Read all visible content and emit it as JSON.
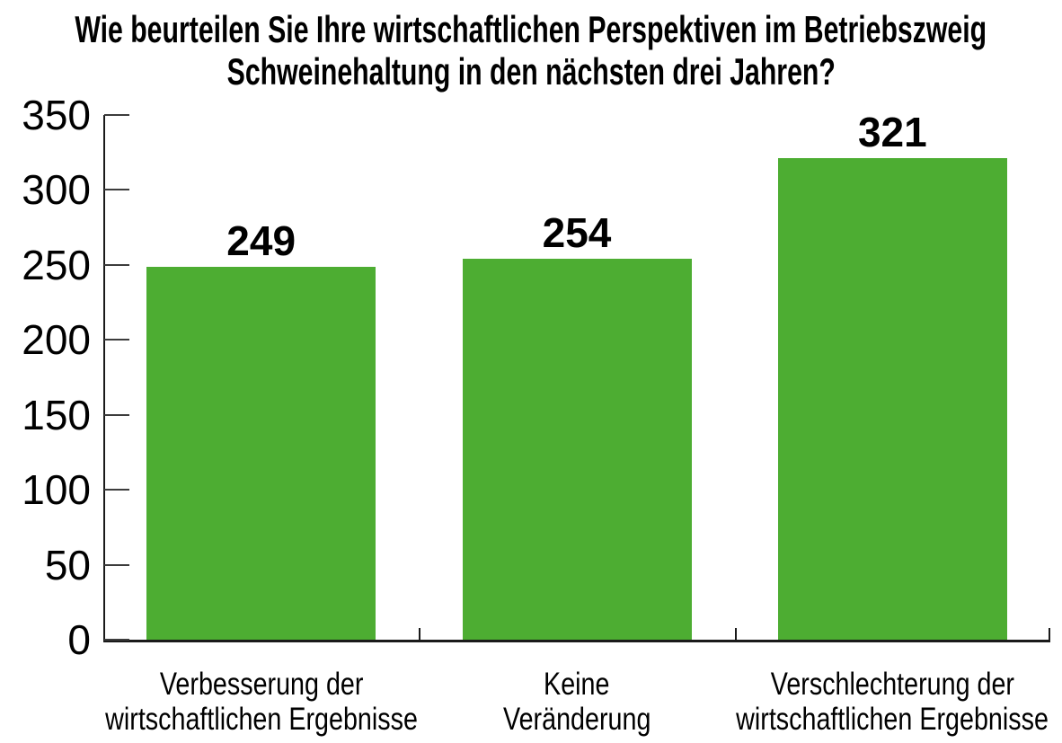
{
  "chart_data": {
    "type": "bar",
    "title": "Wie beurteilen Sie Ihre wirtschaftlichen Perspektiven im Betriebszweig Schweinehaltung in den nächsten drei Jahren?",
    "title_lines": [
      "Wie beurteilen Sie Ihre wirtschaftlichen Perspektiven im Betriebszweig",
      "Schweinehaltung in den nächsten drei Jahren?"
    ],
    "categories": [
      "Verbesserung der wirtschaftlichen Ergebnisse",
      "Keine Veränderung",
      "Verschlechterung der wirtschaftlichen Ergebnisse"
    ],
    "category_lines": [
      [
        "Verbesserung der",
        "wirtschaftlichen Ergebnisse"
      ],
      [
        "Keine",
        "Veränderung"
      ],
      [
        "Verschlechterung der",
        "wirtschaftlichen Ergebnisse"
      ]
    ],
    "values": [
      249,
      254,
      321
    ],
    "value_labels": [
      "249",
      "254",
      "321"
    ],
    "y_ticks": [
      0,
      50,
      100,
      150,
      200,
      250,
      300,
      350
    ],
    "ylim": [
      0,
      350
    ],
    "xlabel": "",
    "ylabel": "",
    "grid": false,
    "legend": false,
    "tick_style": "inside",
    "colors": {
      "bar": "#4dad32",
      "axis": "#1a1a1a",
      "tick": "#3c3c3c",
      "text": "#000000",
      "background": "#ffffff"
    }
  }
}
